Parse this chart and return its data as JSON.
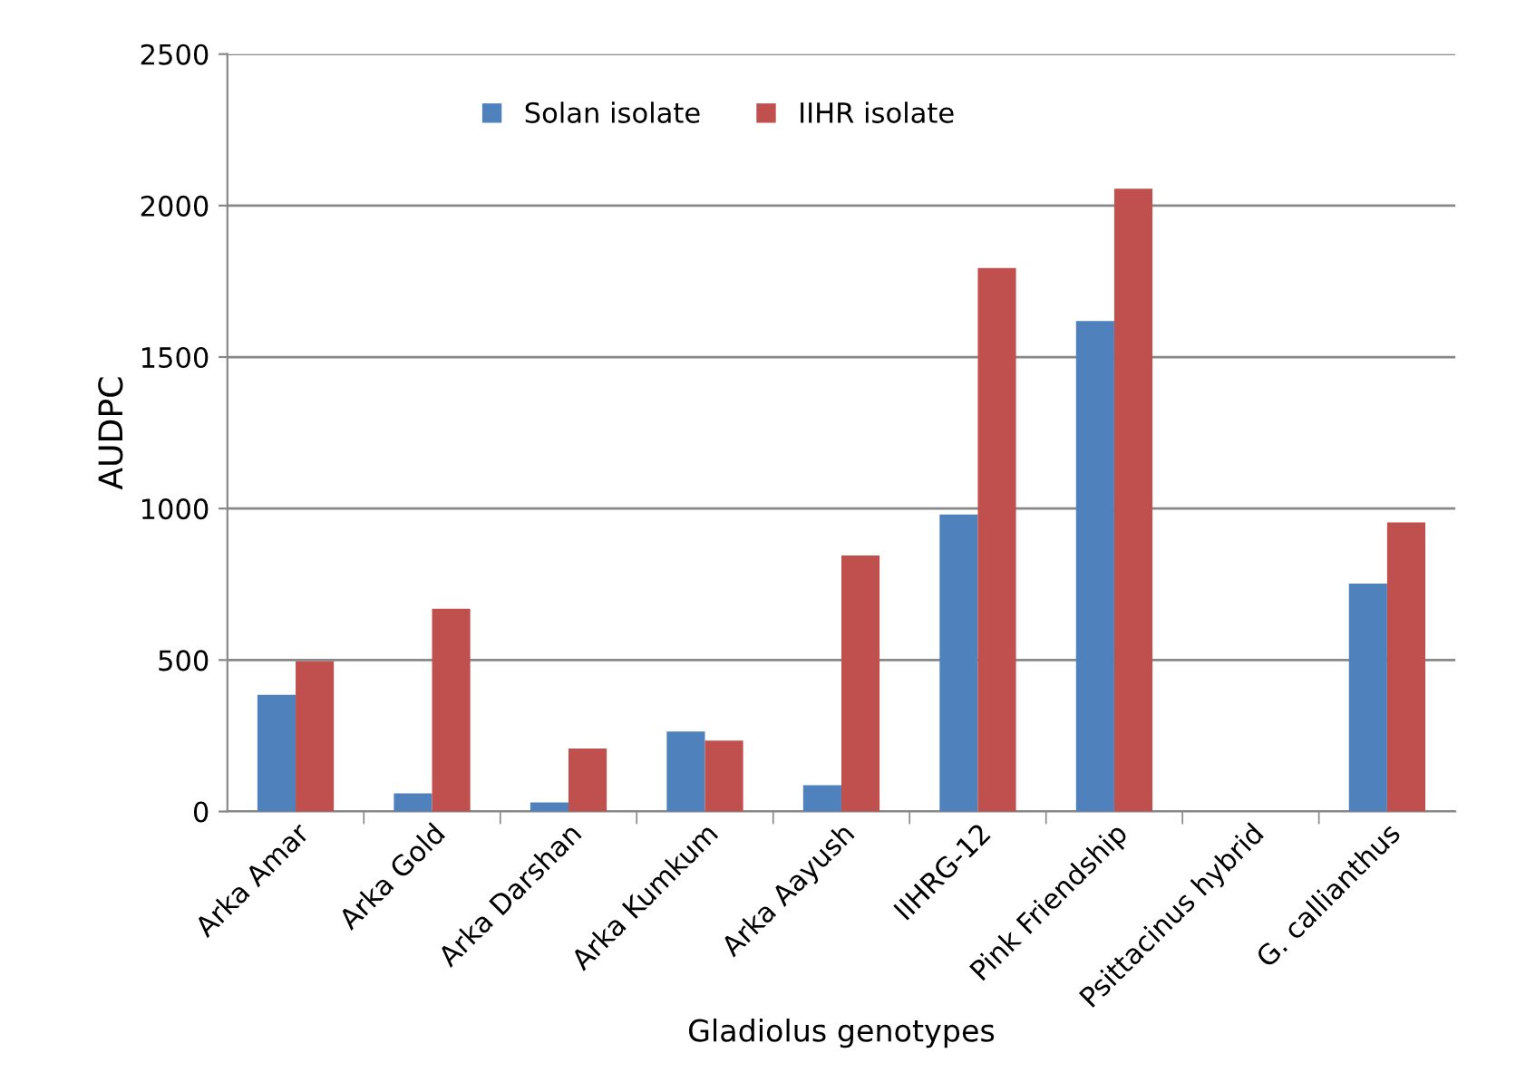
{
  "chart_data": {
    "type": "bar",
    "xlabel": "Gladiolus genotypes",
    "ylabel": "AUDPC",
    "categories": [
      "Arka Amar",
      "Arka Gold",
      "Arka Darshan",
      "Arka Kumkum",
      "Arka Aayush",
      "IIHRG-12",
      "Pink Friendship",
      "Psittacinus hybrid",
      "G. callianthus"
    ],
    "series": [
      {
        "name": "Solan isolate",
        "color": "#4f81bd",
        "values": [
          385,
          60,
          30,
          264,
          87,
          980,
          1619,
          0,
          752
        ]
      },
      {
        "name": "IIHR isolate",
        "color": "#c0504d",
        "values": [
          496,
          669,
          208,
          234,
          845,
          1794,
          2056,
          0,
          954
        ]
      }
    ],
    "ylim": [
      0,
      2500
    ],
    "yticks": [
      0,
      500,
      1000,
      1500,
      2000,
      2500
    ],
    "grid": "y",
    "legend": "top"
  }
}
